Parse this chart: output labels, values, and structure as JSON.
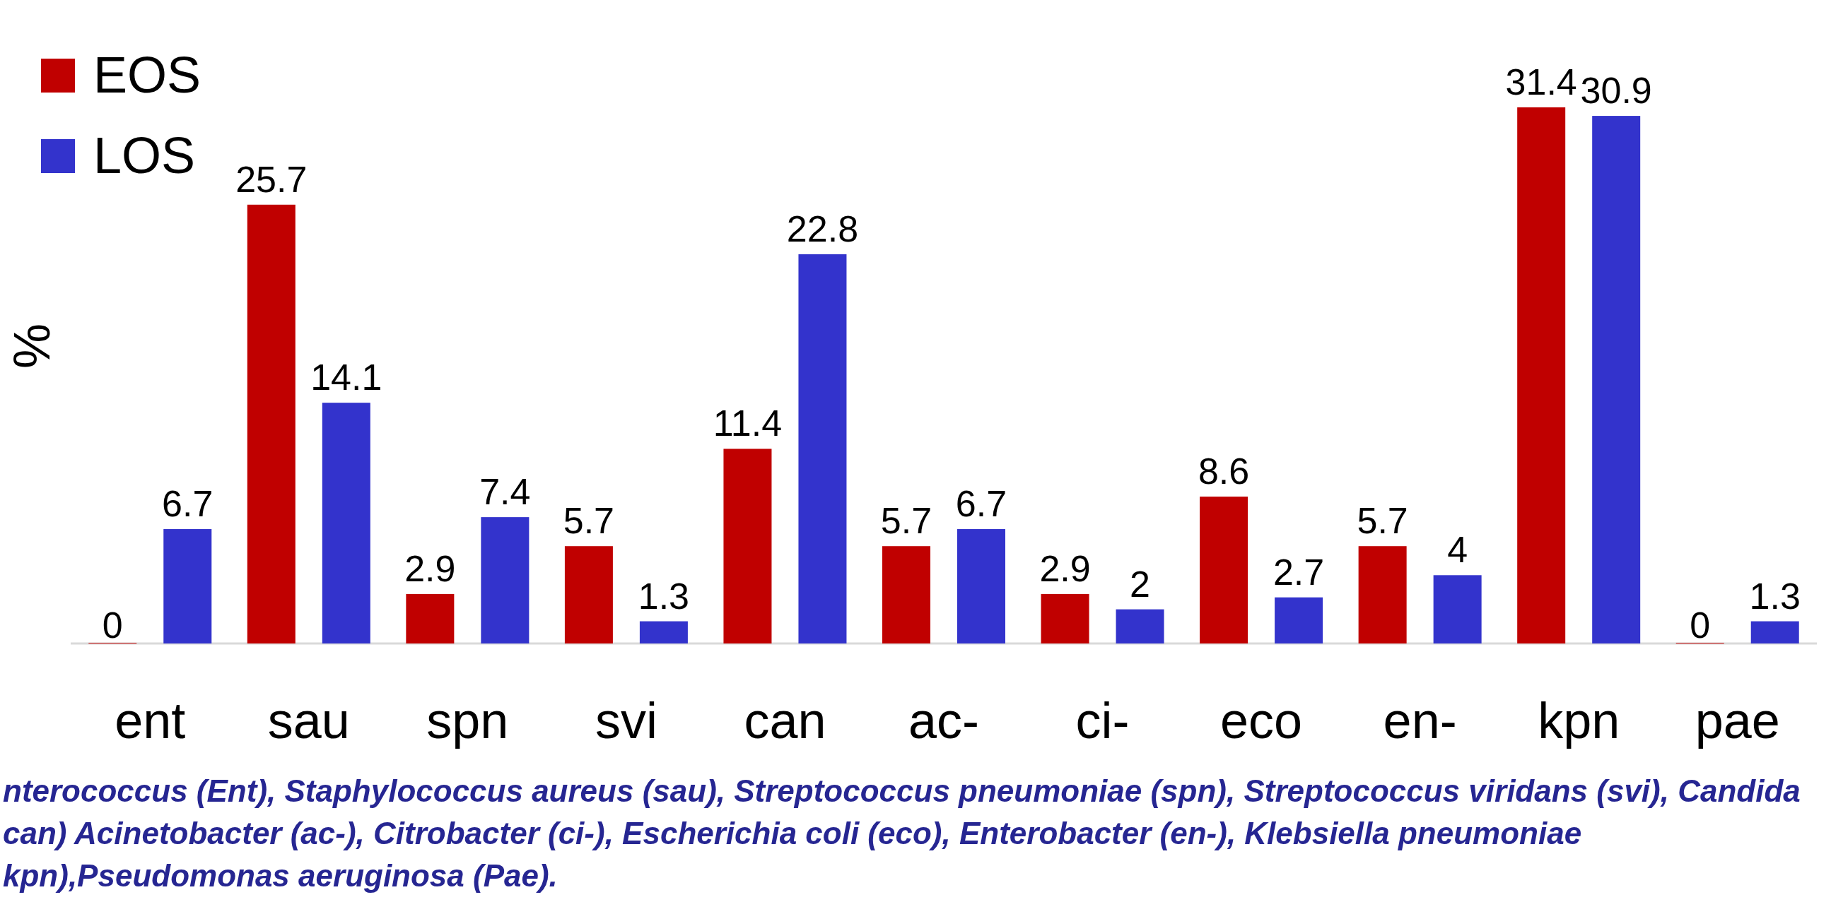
{
  "chart_data": {
    "type": "bar",
    "ylabel": "%",
    "categories": [
      "ent",
      "sau",
      "spn",
      "svi",
      "can",
      "ac-",
      "ci-",
      "eco",
      "en-",
      "kpn",
      "pae"
    ],
    "series": [
      {
        "name": "EOS",
        "color": "#c00000",
        "values": [
          0,
          25.7,
          2.9,
          5.7,
          11.4,
          5.7,
          2.9,
          8.6,
          5.7,
          31.4,
          0
        ]
      },
      {
        "name": "LOS",
        "color": "#3333cc",
        "values": [
          6.7,
          14.1,
          7.4,
          1.3,
          22.8,
          6.7,
          2,
          2.7,
          4,
          30.9,
          1.3
        ]
      }
    ],
    "tick_labels": "x",
    "data_labels": true,
    "legend": "top left",
    "annotations": [
      "nterococcus (Ent), Staphylococcus aureus (sau), Streptococcus pneumoniae (spn), Streptococcus viridans (svi), Candida",
      "can) Acinetobacter (ac-), Citrobacter (ci-), Escherichia coli (eco), Enterobacter (en-), Klebsiella pneumoniae",
      "kpn),Pseudomonas aeruginosa (Pae)."
    ]
  }
}
